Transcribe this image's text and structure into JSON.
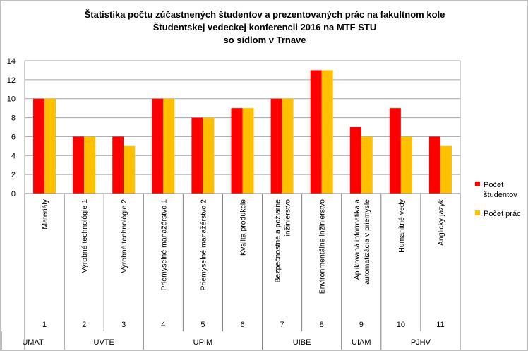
{
  "chart_data": {
    "type": "bar",
    "title_lines": [
      "Štatistika počtu zúčastnených študentov a prezentovaných prác na fakultnom kole",
      "Študentskej vedeckej konferencii 2016 na MTF STU",
      "so sídlom v Trnave"
    ],
    "ylim": [
      0,
      14
    ],
    "yticks": [
      "0",
      "2",
      "4",
      "6",
      "8",
      "10",
      "12",
      "14"
    ],
    "grid": true,
    "legend_position": "right",
    "categories": [
      [
        "Materiály"
      ],
      [
        "Výrobné technológie 1"
      ],
      [
        "Výrobné technológie  2"
      ],
      [
        "Priemyselné manažérstvo 1"
      ],
      [
        "Priemyselné manažérstvo 2"
      ],
      [
        "Kvalita produkcie"
      ],
      [
        "Bezpečnostné a požiarne",
        "inžinierstvo"
      ],
      [
        "Environmentálne inžinierstvo"
      ],
      [
        "Aplikovaná informatika a",
        "automatizácia v priemysle"
      ],
      [
        "Humanitné vedy"
      ],
      [
        "Anglický jazyk"
      ]
    ],
    "numbers": [
      "1",
      "2",
      "3",
      "4",
      "5",
      "6",
      "7",
      "8",
      "9",
      "10",
      "11"
    ],
    "groups": [
      {
        "label": "UMAT",
        "span": [
          0,
          0
        ]
      },
      {
        "label": "UVTE",
        "span": [
          1,
          2
        ]
      },
      {
        "label": "UPIM",
        "span": [
          3,
          5
        ]
      },
      {
        "label": "UIBE",
        "span": [
          6,
          7
        ]
      },
      {
        "label": "UIAM",
        "span": [
          8,
          8
        ]
      },
      {
        "label": "PJHV",
        "span": [
          9,
          10
        ]
      }
    ],
    "series": [
      {
        "name": [
          "Počet",
          "študentov"
        ],
        "color": "#ff0000",
        "values": [
          10,
          6,
          6,
          10,
          8,
          9,
          10,
          13,
          7,
          9,
          6
        ]
      },
      {
        "name": [
          "Počet prác"
        ],
        "color": "#ffc000",
        "values": [
          10,
          6,
          5,
          10,
          8,
          9,
          10,
          13,
          6,
          6,
          5
        ]
      }
    ]
  }
}
